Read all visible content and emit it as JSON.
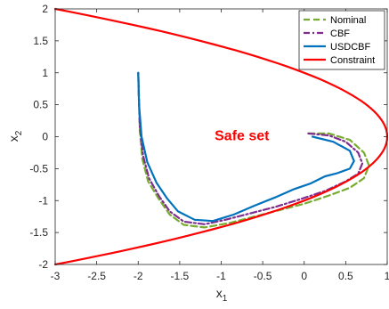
{
  "chart_data": {
    "type": "line",
    "xlabel": "x",
    "xlabel_sub": "1",
    "ylabel": "x",
    "ylabel_sub": "2",
    "xlim": [
      -3,
      1
    ],
    "ylim": [
      -2,
      2
    ],
    "xticks": [
      -3,
      -2.5,
      -2,
      -1.5,
      -1,
      -0.5,
      0,
      0.5,
      1
    ],
    "xtick_labels": [
      "-3",
      "-2.5",
      "-2",
      "-1.5",
      "-1",
      "-0.5",
      "0",
      "0.5",
      "1"
    ],
    "yticks": [
      2,
      1.5,
      1,
      0.5,
      0,
      -0.5,
      -1,
      -1.5,
      -2
    ],
    "ytick_labels": [
      "2",
      "1.5",
      "1",
      "0.5",
      "0",
      "-0.5",
      "-1",
      "-1.5",
      "-2"
    ],
    "grid": false,
    "legend_position": "top-right",
    "annotation": {
      "text": "Safe set",
      "x": -0.75,
      "y": 0,
      "color": "#ff0000"
    },
    "series": [
      {
        "name": "Nominal",
        "color": "#77ac30",
        "dash": "dashed",
        "points": [
          [
            0.05,
            0.05
          ],
          [
            0.3,
            0.05
          ],
          [
            0.55,
            -0.05
          ],
          [
            0.72,
            -0.25
          ],
          [
            0.78,
            -0.45
          ],
          [
            0.72,
            -0.65
          ],
          [
            0.55,
            -0.8
          ],
          [
            0.3,
            -0.92
          ],
          [
            0.0,
            -1.05
          ],
          [
            -0.3,
            -1.15
          ],
          [
            -0.6,
            -1.25
          ],
          [
            -0.9,
            -1.35
          ],
          [
            -1.2,
            -1.42
          ],
          [
            -1.45,
            -1.38
          ],
          [
            -1.62,
            -1.22
          ],
          [
            -1.75,
            -0.98
          ],
          [
            -1.88,
            -0.7
          ],
          [
            -1.95,
            -0.35
          ],
          [
            -1.98,
            0.1
          ],
          [
            -1.99,
            0.5
          ],
          [
            -2.0,
            1.0
          ]
        ]
      },
      {
        "name": "CBF",
        "color": "#7e2f8e",
        "dash": "dashdot",
        "points": [
          [
            0.05,
            0.05
          ],
          [
            0.3,
            0.02
          ],
          [
            0.5,
            -0.08
          ],
          [
            0.65,
            -0.25
          ],
          [
            0.7,
            -0.42
          ],
          [
            0.65,
            -0.58
          ],
          [
            0.5,
            -0.7
          ],
          [
            0.25,
            -0.85
          ],
          [
            -0.05,
            -0.98
          ],
          [
            -0.35,
            -1.1
          ],
          [
            -0.65,
            -1.2
          ],
          [
            -0.95,
            -1.3
          ],
          [
            -1.2,
            -1.37
          ],
          [
            -1.45,
            -1.33
          ],
          [
            -1.62,
            -1.17
          ],
          [
            -1.75,
            -0.93
          ],
          [
            -1.87,
            -0.65
          ],
          [
            -1.94,
            -0.3
          ],
          [
            -1.98,
            0.15
          ],
          [
            -1.99,
            0.55
          ],
          [
            -2.0,
            1.0
          ]
        ]
      },
      {
        "name": "USDCBF",
        "color": "#0072bd",
        "dash": "solid",
        "points": [
          [
            0.1,
            0.0
          ],
          [
            0.35,
            -0.08
          ],
          [
            0.55,
            -0.22
          ],
          [
            0.6,
            -0.38
          ],
          [
            0.55,
            -0.5
          ],
          [
            0.4,
            -0.57
          ],
          [
            0.25,
            -0.62
          ],
          [
            0.08,
            -0.73
          ],
          [
            -0.12,
            -0.82
          ],
          [
            -0.35,
            -0.95
          ],
          [
            -0.6,
            -1.08
          ],
          [
            -0.85,
            -1.22
          ],
          [
            -1.1,
            -1.32
          ],
          [
            -1.32,
            -1.3
          ],
          [
            -1.52,
            -1.17
          ],
          [
            -1.65,
            -0.97
          ],
          [
            -1.78,
            -0.72
          ],
          [
            -1.89,
            -0.4
          ],
          [
            -1.96,
            0.0
          ],
          [
            -1.99,
            0.5
          ],
          [
            -2.0,
            1.0
          ]
        ]
      },
      {
        "name": "Constraint",
        "color": "#ff0000",
        "dash": "solid",
        "curve": "x1 = 1 - x2^2"
      }
    ]
  }
}
